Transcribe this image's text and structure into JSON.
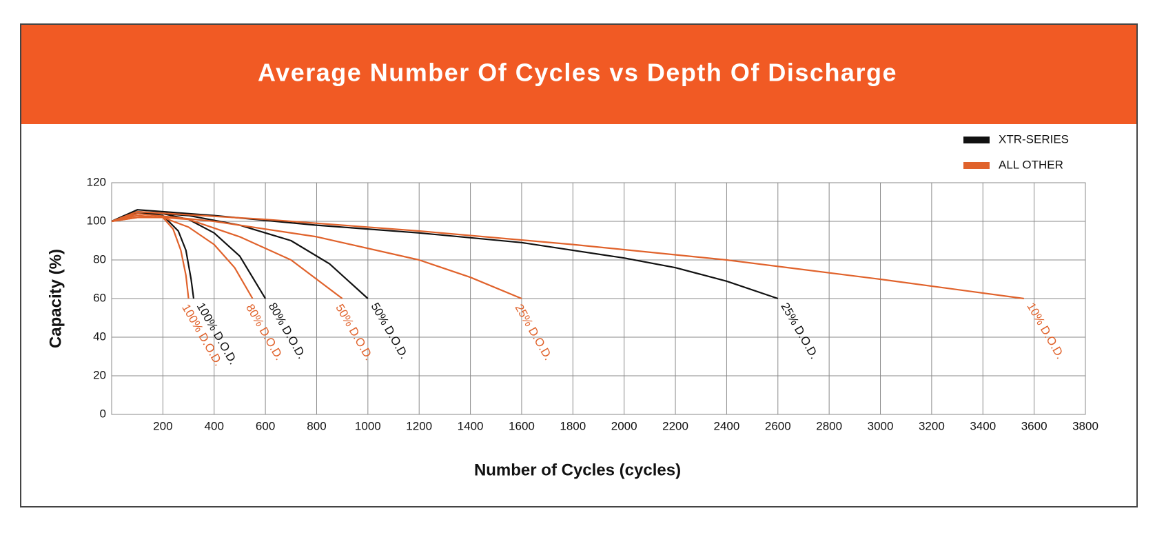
{
  "chart_data": {
    "type": "line",
    "title": "Average Number Of Cycles vs Depth Of Discharge",
    "x_label": "Number of Cycles (cycles)",
    "y_label": "Capacity (%)",
    "xlim": [
      0,
      3800
    ],
    "xticks": [
      200,
      400,
      600,
      800,
      1000,
      1200,
      1400,
      1600,
      1800,
      2000,
      2200,
      2400,
      2600,
      2800,
      3000,
      3200,
      3400,
      3600,
      3800
    ],
    "ylim": [
      0,
      120
    ],
    "yticks": [
      0,
      20,
      40,
      60,
      80,
      100,
      120
    ],
    "grid": true,
    "legend_position": "top-right",
    "legend": [
      {
        "name": "XTR-SERIES",
        "color": "#111111"
      },
      {
        "name": "ALL OTHER",
        "color": "#e0622b"
      }
    ],
    "series": [
      {
        "label": "100% D.O.D.",
        "color": "#111111",
        "x": [
          0,
          50,
          100,
          200,
          260,
          290,
          310,
          320
        ],
        "values": [
          100,
          103,
          104,
          103,
          95,
          85,
          70,
          60
        ]
      },
      {
        "label": "100% D.O.D.",
        "color": "#e0622b",
        "x": [
          0,
          100,
          200,
          240,
          270,
          290,
          300
        ],
        "values": [
          100,
          102,
          102,
          96,
          85,
          72,
          60
        ]
      },
      {
        "label": "80% D.O.D.",
        "color": "#111111",
        "x": [
          0,
          100,
          200,
          300,
          400,
          500,
          600
        ],
        "values": [
          100,
          104,
          104,
          101,
          94,
          82,
          60
        ]
      },
      {
        "label": "80% D.O.D.",
        "color": "#e0622b",
        "x": [
          0,
          100,
          200,
          300,
          400,
          480,
          550
        ],
        "values": [
          100,
          102,
          102,
          97,
          88,
          76,
          60
        ]
      },
      {
        "label": "50% D.O.D.",
        "color": "#111111",
        "x": [
          0,
          100,
          300,
          500,
          700,
          850,
          1000
        ],
        "values": [
          100,
          105,
          103,
          98,
          90,
          78,
          60
        ]
      },
      {
        "label": "50% D.O.D.",
        "color": "#e0622b",
        "x": [
          0,
          100,
          300,
          500,
          700,
          900
        ],
        "values": [
          100,
          103,
          101,
          92,
          80,
          60
        ]
      },
      {
        "label": "25% D.O.D.",
        "color": "#e0622b",
        "x": [
          0,
          100,
          400,
          800,
          1200,
          1400,
          1600
        ],
        "values": [
          100,
          104,
          100,
          92,
          80,
          71,
          60
        ]
      },
      {
        "label": "25% D.O.D.",
        "color": "#111111",
        "x": [
          0,
          100,
          400,
          800,
          1200,
          1600,
          2000,
          2200,
          2400,
          2600
        ],
        "values": [
          100,
          106,
          103,
          98,
          94,
          89,
          81,
          76,
          69,
          60
        ]
      },
      {
        "label": "10% D.O.D.",
        "color": "#e0622b",
        "x": [
          0,
          100,
          600,
          1200,
          1800,
          2400,
          3000,
          3560
        ],
        "values": [
          100,
          105,
          101,
          95,
          88,
          80,
          70,
          60
        ]
      }
    ]
  }
}
